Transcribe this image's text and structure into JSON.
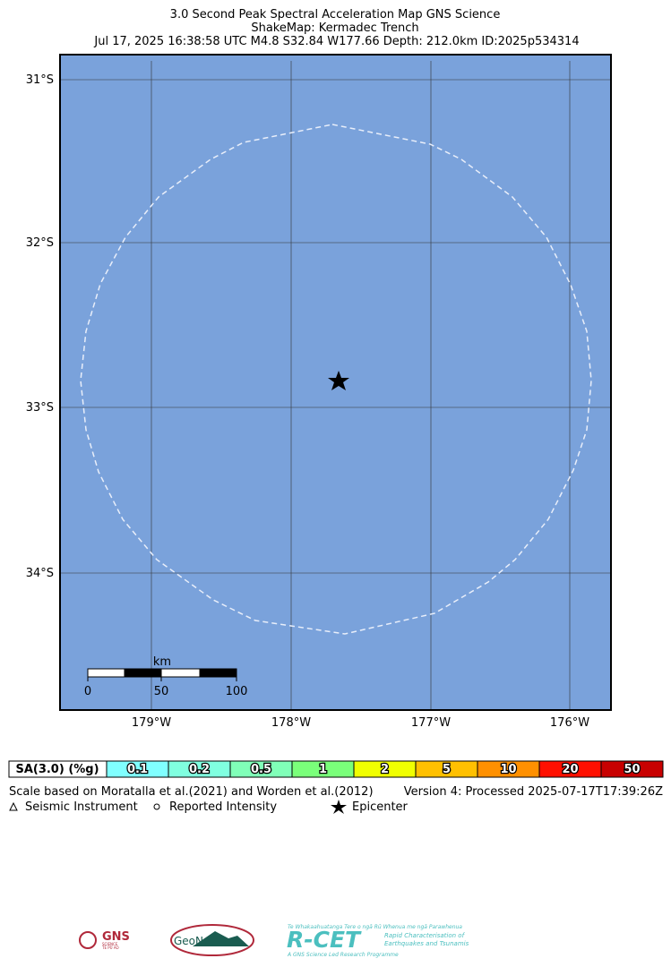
{
  "header": {
    "lines": [
      "3.0 Second Peak Spectral Acceleration Map GNS Science",
      "ShakeMap: Kermadec Trench",
      "Jul 17, 2025 16:38:58 UTC M4.8 S32.84 W177.66 Depth: 212.0km ID:2025p534314"
    ]
  },
  "map": {
    "lat_labels": [
      "31°S",
      "32°S",
      "33°S",
      "34°S"
    ],
    "lon_labels": [
      "179°W",
      "178°W",
      "177°W",
      "176°W"
    ],
    "scale_bar": {
      "unit": "km",
      "labels": [
        "0",
        "50",
        "100"
      ]
    }
  },
  "colorbar": {
    "label": "SA(3.0) (%g)",
    "levels": [
      "0.1",
      "0.2",
      "0.5",
      "1",
      "2",
      "5",
      "10",
      "20",
      "50"
    ],
    "colors": [
      "#80ffff",
      "#80ffe0",
      "#80ffb8",
      "#7aff7a",
      "#f0ff00",
      "#ffc000",
      "#ff9000",
      "#ff1000",
      "#c80000"
    ]
  },
  "notes": {
    "scale": "Scale based on Moratalla et al.(2021) and Worden et al.(2012)",
    "version": "Version 4: Processed 2025-07-17T17:39:26Z"
  },
  "legend": [
    "Seismic Instrument",
    "Reported Intensity",
    "Epicenter"
  ],
  "logos": {
    "gns": "GNS",
    "gns_sub": "SCIENCE",
    "gns_sub2": "TE PŪ AO",
    "geonet": "GeoNet",
    "rcet": "R-CET",
    "rcet_top": "Te Whakaahuatanga Tere o ngā Rū Whenua me ngā Parawhenua",
    "rcet_sub1": "Rapid Characterisation of",
    "rcet_sub2": "Earthquakes and Tsunamis",
    "rcet_bottom": "A GNS Science Led Research Programme"
  }
}
